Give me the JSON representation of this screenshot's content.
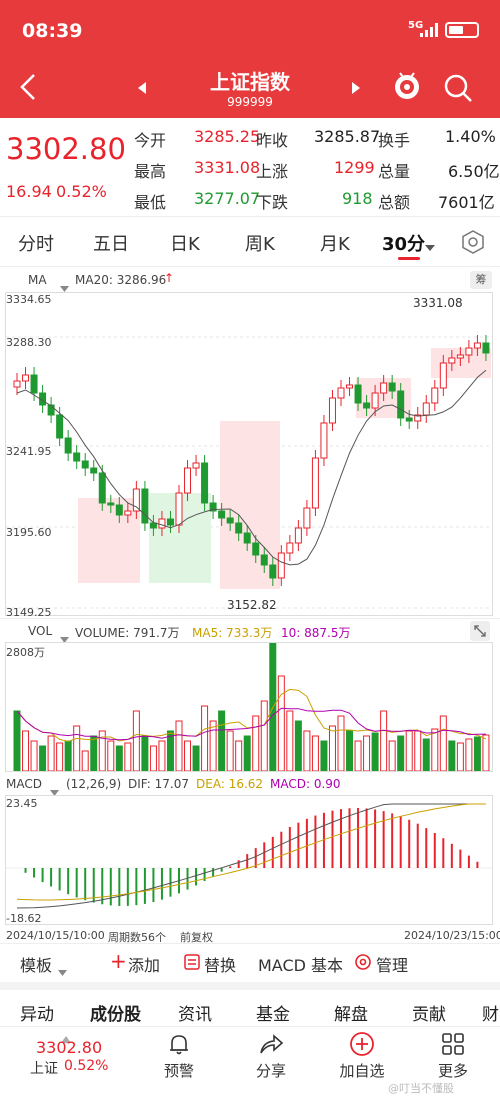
{
  "status": {
    "time": "08:39",
    "signal": "5G",
    "battery_icon": "battery-icon"
  },
  "header": {
    "title": "上证指数",
    "code": "999999"
  },
  "quote": {
    "price": "3302.80",
    "change": "16.94",
    "change_pct": "0.52%",
    "open_label": "今开",
    "open": "3285.25",
    "prev_label": "昨收",
    "prev": "3285.87",
    "turnover_label": "换手",
    "turnover": "1.40%",
    "high_label": "最高",
    "high": "3331.08",
    "up_label": "上涨",
    "up": "1299",
    "volume_label": "总量",
    "volume": "6.50亿",
    "low_label": "最低",
    "low": "3277.07",
    "down_label": "下跌",
    "down": "918",
    "amount_label": "总额",
    "amount": "7601亿"
  },
  "tabs": [
    "分时",
    "五日",
    "日K",
    "周K",
    "月K",
    "30分"
  ],
  "active_tab": "30分",
  "kline": {
    "ma_label": "MA",
    "ma20": "MA20: 3286.96",
    "chip_label": "筹",
    "y_ticks": [
      "3334.65",
      "3288.30",
      "3241.95",
      "3195.60",
      "3149.25"
    ],
    "high_mark": "3331.08",
    "low_mark": "3152.82"
  },
  "vol": {
    "label": "VOL",
    "volume": "VOLUME: 791.7万",
    "ma5": "MA5: 733.3万",
    "ma10": "10: 887.5万",
    "top": "2808万"
  },
  "macd": {
    "label": "MACD",
    "params": "(12,26,9)",
    "dif": "DIF: 17.07",
    "dea": "DEA: 16.62",
    "macd": "MACD: 0.90",
    "top": "23.45",
    "bottom": "-18.62"
  },
  "footer_axis": {
    "start": "2024/10/15/10:00",
    "period": "周期数56个",
    "adjust": "前复权",
    "end": "2024/10/23/15:00"
  },
  "tools": {
    "template": "模板",
    "add": "添加",
    "replace": "替换",
    "macd_basic": "MACD 基本",
    "manage": "管理"
  },
  "subtabs": [
    "异动",
    "成份股",
    "资讯",
    "基金",
    "解盘",
    "贡献",
    "财"
  ],
  "bottom": {
    "price": "3302.80",
    "name": "上证",
    "pct": "0.52%",
    "alert": "预警",
    "share": "分享",
    "add": "加自选",
    "more": "更多",
    "watermark": "@叮当不懂股"
  },
  "colors": {
    "up": "#e8232c",
    "down": "#1f9a30",
    "brand": "#e73a3c"
  }
}
